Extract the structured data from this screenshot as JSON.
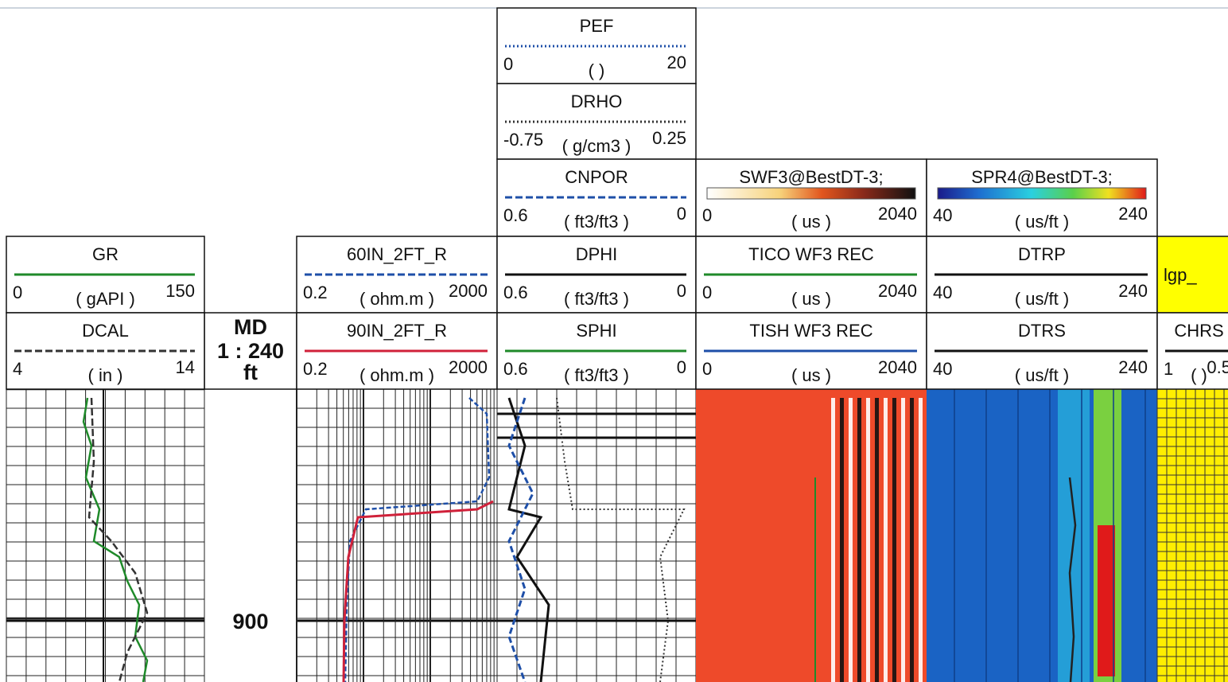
{
  "depth": {
    "label": "MD",
    "scale": "1 : 240",
    "unit": "ft",
    "mark": "900"
  },
  "tracks": [
    {
      "curves": [
        {
          "name": "GR",
          "min": "0",
          "unit": "( gAPI )",
          "max": "150",
          "color": "#1f8a2a",
          "dash": "solid"
        },
        {
          "name": "DCAL",
          "min": "4",
          "unit": "( in )",
          "max": "14",
          "color": "#333333",
          "dash": "dashed"
        }
      ]
    },
    {
      "curves": [
        {
          "name": "60IN_2FT_R",
          "min": "0.2",
          "unit": "( ohm.m )",
          "max": "2000",
          "color": "#1e4fa8",
          "dash": "dashed"
        },
        {
          "name": "90IN_2FT_R",
          "min": "0.2",
          "unit": "( ohm.m )",
          "max": "2000",
          "color": "#d0213a",
          "dash": "solid"
        }
      ]
    },
    {
      "curves": [
        {
          "name": "PEF",
          "min": "0",
          "unit": "( )",
          "max": "20",
          "color": "#1e4fa8",
          "dash": "dotted"
        },
        {
          "name": "DRHO",
          "min": "-0.75",
          "unit": "( g/cm3 )",
          "max": "0.25",
          "color": "#333333",
          "dash": "dotted"
        },
        {
          "name": "CNPOR",
          "min": "0.6",
          "unit": "( ft3/ft3 )",
          "max": "0",
          "color": "#1e4fa8",
          "dash": "dashed"
        },
        {
          "name": "DPHI",
          "min": "0.6",
          "unit": "( ft3/ft3 )",
          "max": "0",
          "color": "#111111",
          "dash": "solid"
        },
        {
          "name": "SPHI",
          "min": "0.6",
          "unit": "( ft3/ft3 )",
          "max": "0",
          "color": "#1f8a2a",
          "dash": "solid"
        }
      ]
    },
    {
      "curves": [
        {
          "name": "SWF3@BestDT-3;",
          "min": "0",
          "unit": "( us )",
          "max": "2040",
          "color": "greys",
          "dash": "bar"
        },
        {
          "name": "TICO WF3 REC",
          "min": "0",
          "unit": "( us )",
          "max": "2040",
          "color": "#1f8a2a",
          "dash": "solid"
        },
        {
          "name": "TISH WF3 REC",
          "min": "0",
          "unit": "( us )",
          "max": "2040",
          "color": "#1e4fa8",
          "dash": "solid"
        }
      ]
    },
    {
      "curves": [
        {
          "name": "SPR4@BestDT-3;",
          "min": "40",
          "unit": "( us/ft )",
          "max": "240",
          "color": "rainbow",
          "dash": "bar"
        },
        {
          "name": "DTRP",
          "min": "40",
          "unit": "( us/ft )",
          "max": "240",
          "color": "#111111",
          "dash": "solid"
        },
        {
          "name": "DTRS",
          "min": "40",
          "unit": "( us/ft )",
          "max": "240",
          "color": "#111111",
          "dash": "solid"
        }
      ]
    },
    {
      "curves": [
        {
          "name": "lgp_",
          "color": "#ffff00",
          "dash": "box"
        },
        {
          "name": "CHRS",
          "min": "1",
          "unit": "( )",
          "max": "0.5",
          "color": "#111111",
          "dash": "solid"
        }
      ]
    }
  ]
}
